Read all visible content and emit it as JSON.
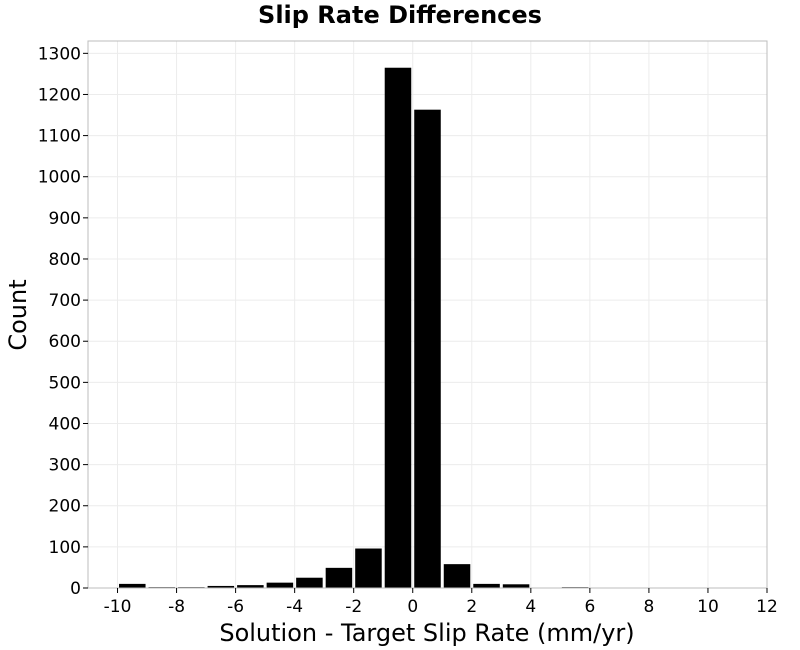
{
  "chart_data": {
    "type": "bar",
    "title": "Slip Rate Differences",
    "xlabel": "Solution - Target Slip Rate (mm/yr)",
    "ylabel": "Count",
    "bin_width": 1,
    "x": [
      -9.5,
      -8.5,
      -7.5,
      -6.5,
      -5.5,
      -4.5,
      -3.5,
      -2.5,
      -1.5,
      -0.5,
      0.5,
      1.5,
      2.5,
      3.5,
      4.5,
      5.5,
      6.5,
      7.5,
      8.5,
      9.5,
      10.5
    ],
    "values": [
      10,
      2,
      2,
      5,
      7,
      13,
      25,
      49,
      96,
      1265,
      1163,
      58,
      10,
      9,
      1,
      2,
      0,
      0,
      0,
      0,
      0
    ],
    "xlim": [
      -11,
      12
    ],
    "ylim": [
      0,
      1330
    ],
    "xticks": [
      "-10",
      "-8",
      "-6",
      "-4",
      "-2",
      "0",
      "2",
      "4",
      "6",
      "8",
      "10",
      "12"
    ],
    "yticks": [
      "0",
      "100",
      "200",
      "300",
      "400",
      "500",
      "600",
      "700",
      "800",
      "900",
      "1000",
      "1100",
      "1200",
      "1300"
    ],
    "grid": true,
    "bar_color": "#000000",
    "grid_color": "#ececec",
    "frame_color": "#bdbdbd"
  }
}
